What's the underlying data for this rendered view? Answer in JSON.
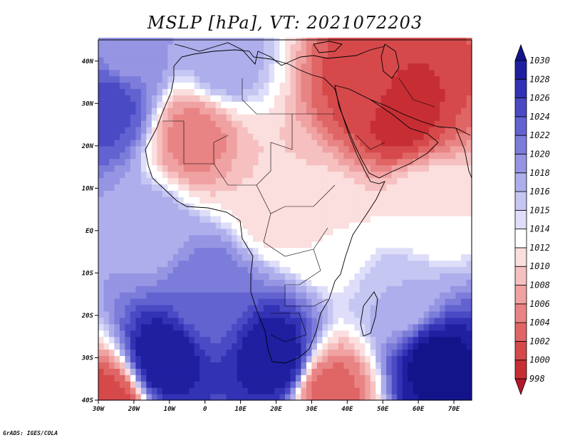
{
  "title": "MSLP [hPa], VT: 2021072203",
  "credit": "GrADS: IGES/COLA",
  "chart_data": {
    "type": "heatmap",
    "title": "MSLP [hPa], VT: 2021072203",
    "lon_range": [
      -30,
      75
    ],
    "lat_range": [
      -40,
      45
    ],
    "x_ticks": [
      {
        "value": -30,
        "label": "30W"
      },
      {
        "value": -20,
        "label": "20W"
      },
      {
        "value": -10,
        "label": "10W"
      },
      {
        "value": 0,
        "label": "0"
      },
      {
        "value": 10,
        "label": "10E"
      },
      {
        "value": 20,
        "label": "20E"
      },
      {
        "value": 30,
        "label": "30E"
      },
      {
        "value": 40,
        "label": "40E"
      },
      {
        "value": 50,
        "label": "50E"
      },
      {
        "value": 60,
        "label": "60E"
      },
      {
        "value": 70,
        "label": "70E"
      }
    ],
    "y_ticks": [
      {
        "value": 40,
        "label": "40N"
      },
      {
        "value": 30,
        "label": "30N"
      },
      {
        "value": 20,
        "label": "20N"
      },
      {
        "value": 10,
        "label": "10N"
      },
      {
        "value": 0,
        "label": "EQ"
      },
      {
        "value": -10,
        "label": "10S"
      },
      {
        "value": -20,
        "label": "20S"
      },
      {
        "value": -30,
        "label": "30S"
      },
      {
        "value": -40,
        "label": "40S"
      }
    ],
    "colorbar": {
      "levels": [
        "998",
        "1000",
        "1002",
        "1004",
        "1006",
        "1008",
        "1010",
        "1012",
        "1014",
        "1015",
        "1016",
        "1018",
        "1020",
        "1022",
        "1024",
        "1026",
        "1028",
        "1030"
      ],
      "colors": [
        "#b2182b",
        "#c62e34",
        "#d6494b",
        "#e06565",
        "#e88484",
        "#f0a2a2",
        "#f6c0c0",
        "#fbdede",
        "#ffffff",
        "#dedefa",
        "#c6c6f2",
        "#aeaeec",
        "#9595e3",
        "#7c7cda",
        "#6262d0",
        "#4a4ac4",
        "#3232b4",
        "#1f1fa0",
        "#14148a"
      ]
    },
    "pressure_centers": [
      {
        "lon": -3,
        "lat": 22,
        "value": 1005
      },
      {
        "lon": 55,
        "lat": 28,
        "value": 999
      },
      {
        "lon": 45,
        "lat": 35,
        "value": 1001
      },
      {
        "lon": 62,
        "lat": 5,
        "value": 1012
      },
      {
        "lon": 20,
        "lat": 8,
        "value": 1010
      },
      {
        "lon": 35,
        "lat": 0,
        "value": 1012
      },
      {
        "lon": -27,
        "lat": 30,
        "value": 1025
      },
      {
        "lon": -22,
        "lat": 42,
        "value": 1019
      },
      {
        "lon": 5,
        "lat": 40,
        "value": 1017
      },
      {
        "lon": -12,
        "lat": -30,
        "value": 1030
      },
      {
        "lon": 20,
        "lat": -30,
        "value": 1030
      },
      {
        "lon": 65,
        "lat": -32,
        "value": 1031
      },
      {
        "lon": 35,
        "lat": -38,
        "value": 1003
      },
      {
        "lon": -27,
        "lat": -40,
        "value": 1001
      },
      {
        "lon": -15,
        "lat": 0,
        "value": 1017
      },
      {
        "lon": 0,
        "lat": -15,
        "value": 1022
      },
      {
        "lon": 55,
        "lat": -15,
        "value": 1016
      }
    ],
    "grid": false,
    "legend_position": "right"
  }
}
